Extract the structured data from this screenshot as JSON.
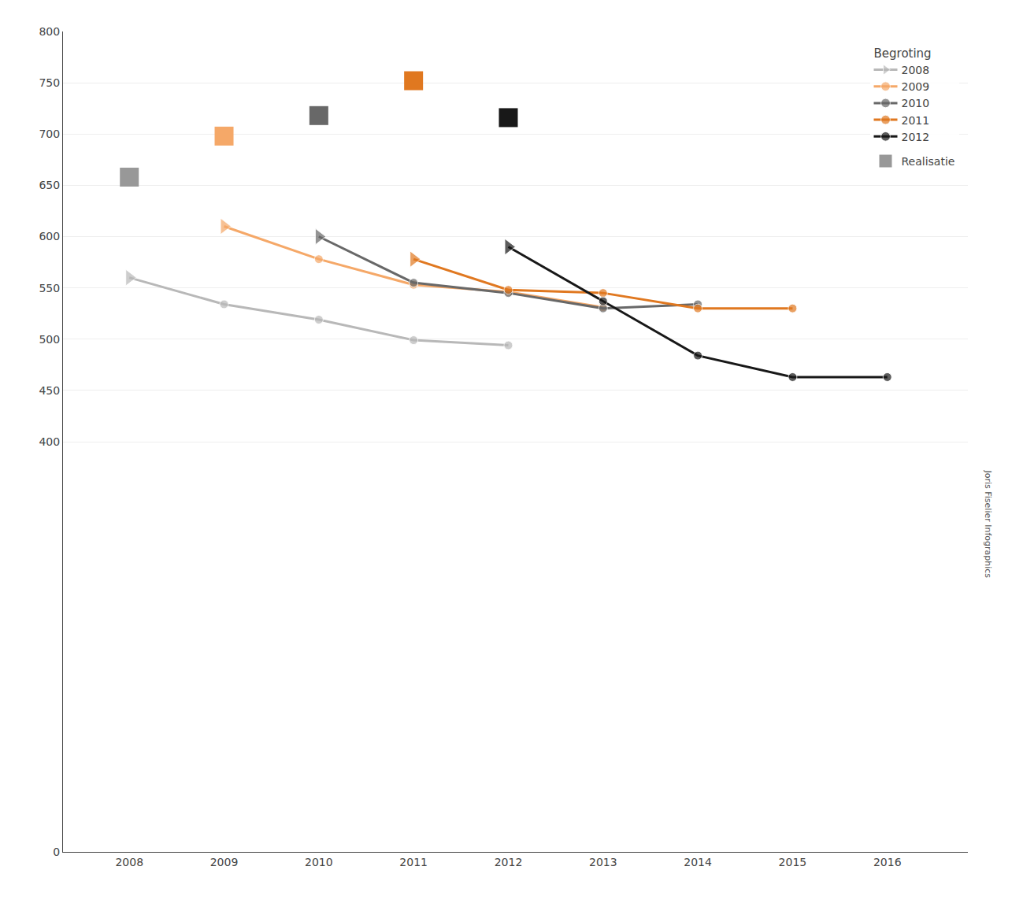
{
  "chart_data": {
    "type": "line",
    "x": [
      2008,
      2009,
      2010,
      2011,
      2012,
      2013,
      2014,
      2015,
      2016
    ],
    "series": [
      {
        "name": "2008",
        "group": "Begroting",
        "color": "#b8b8b8",
        "marker": "circle",
        "values": [
          560,
          534,
          519,
          499,
          494,
          null,
          null,
          null,
          null
        ]
      },
      {
        "name": "2009",
        "group": "Begroting",
        "color": "#f5a868",
        "marker": "circle",
        "values": [
          null,
          610,
          578,
          553,
          546,
          531,
          null,
          null,
          null
        ]
      },
      {
        "name": "2010",
        "group": "Begroting",
        "color": "#686868",
        "marker": "circle",
        "values": [
          null,
          null,
          600,
          555,
          545,
          530,
          534,
          null,
          null
        ]
      },
      {
        "name": "2011",
        "group": "Begroting",
        "color": "#e07820",
        "marker": "circle",
        "values": [
          null,
          null,
          null,
          578,
          548,
          545,
          530,
          530,
          null
        ]
      },
      {
        "name": "2012",
        "group": "Begroting",
        "color": "#181818",
        "marker": "circle",
        "values": [
          null,
          null,
          null,
          null,
          590,
          537,
          484,
          463,
          463
        ]
      },
      {
        "name": "Realisatie",
        "type": "scatter",
        "marker": "square",
        "colors": [
          "#989898",
          "#f5a868",
          "#686868",
          "#e07820",
          "#181818"
        ],
        "values": [
          658,
          698,
          718,
          752,
          716,
          null,
          null,
          null,
          null
        ]
      }
    ],
    "xlim": [
      2007.3,
      2016.85
    ],
    "xticks": [
      2008,
      2009,
      2010,
      2011,
      2012,
      2013,
      2014,
      2015,
      2016
    ],
    "ylim": [
      0,
      800
    ],
    "yticks": [
      0,
      400,
      450,
      500,
      550,
      600,
      650,
      700,
      750,
      800
    ],
    "grid": true,
    "legend": "upper right",
    "annotations": [
      "Joris Fiselier Infographics"
    ]
  }
}
